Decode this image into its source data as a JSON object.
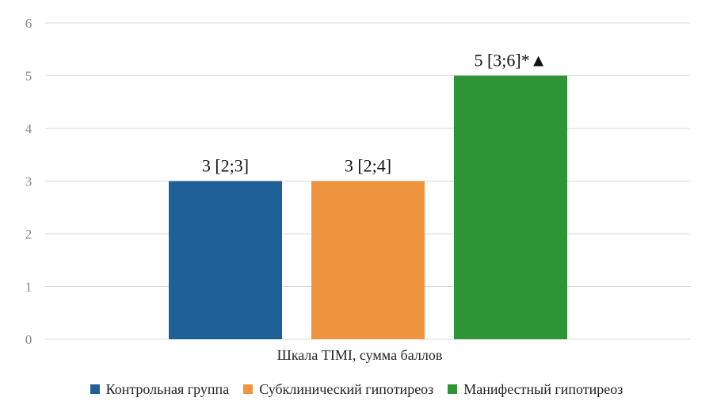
{
  "chart_data": {
    "type": "bar",
    "categories": [
      "Шкала TIMI, сумма баллов"
    ],
    "xlabel": "Шкала TIMI, сумма баллов",
    "ylabel": "",
    "ylim": [
      0,
      6
    ],
    "yticks": [
      "0",
      "1",
      "2",
      "3",
      "4",
      "5",
      "6"
    ],
    "grid": true,
    "legend_position": "bottom",
    "series": [
      {
        "name": "Контрольная группа",
        "values": [
          3
        ],
        "label": "3 [2;3]",
        "color": "#1f6196"
      },
      {
        "name": "Субклинический гипотиреоз",
        "values": [
          3
        ],
        "label": "3 [2;4]",
        "color": "#f0953f"
      },
      {
        "name": "Манифестный гипотиреоз",
        "values": [
          5
        ],
        "label": "5 [3;6]*▲",
        "color": "#2e9436"
      }
    ]
  }
}
